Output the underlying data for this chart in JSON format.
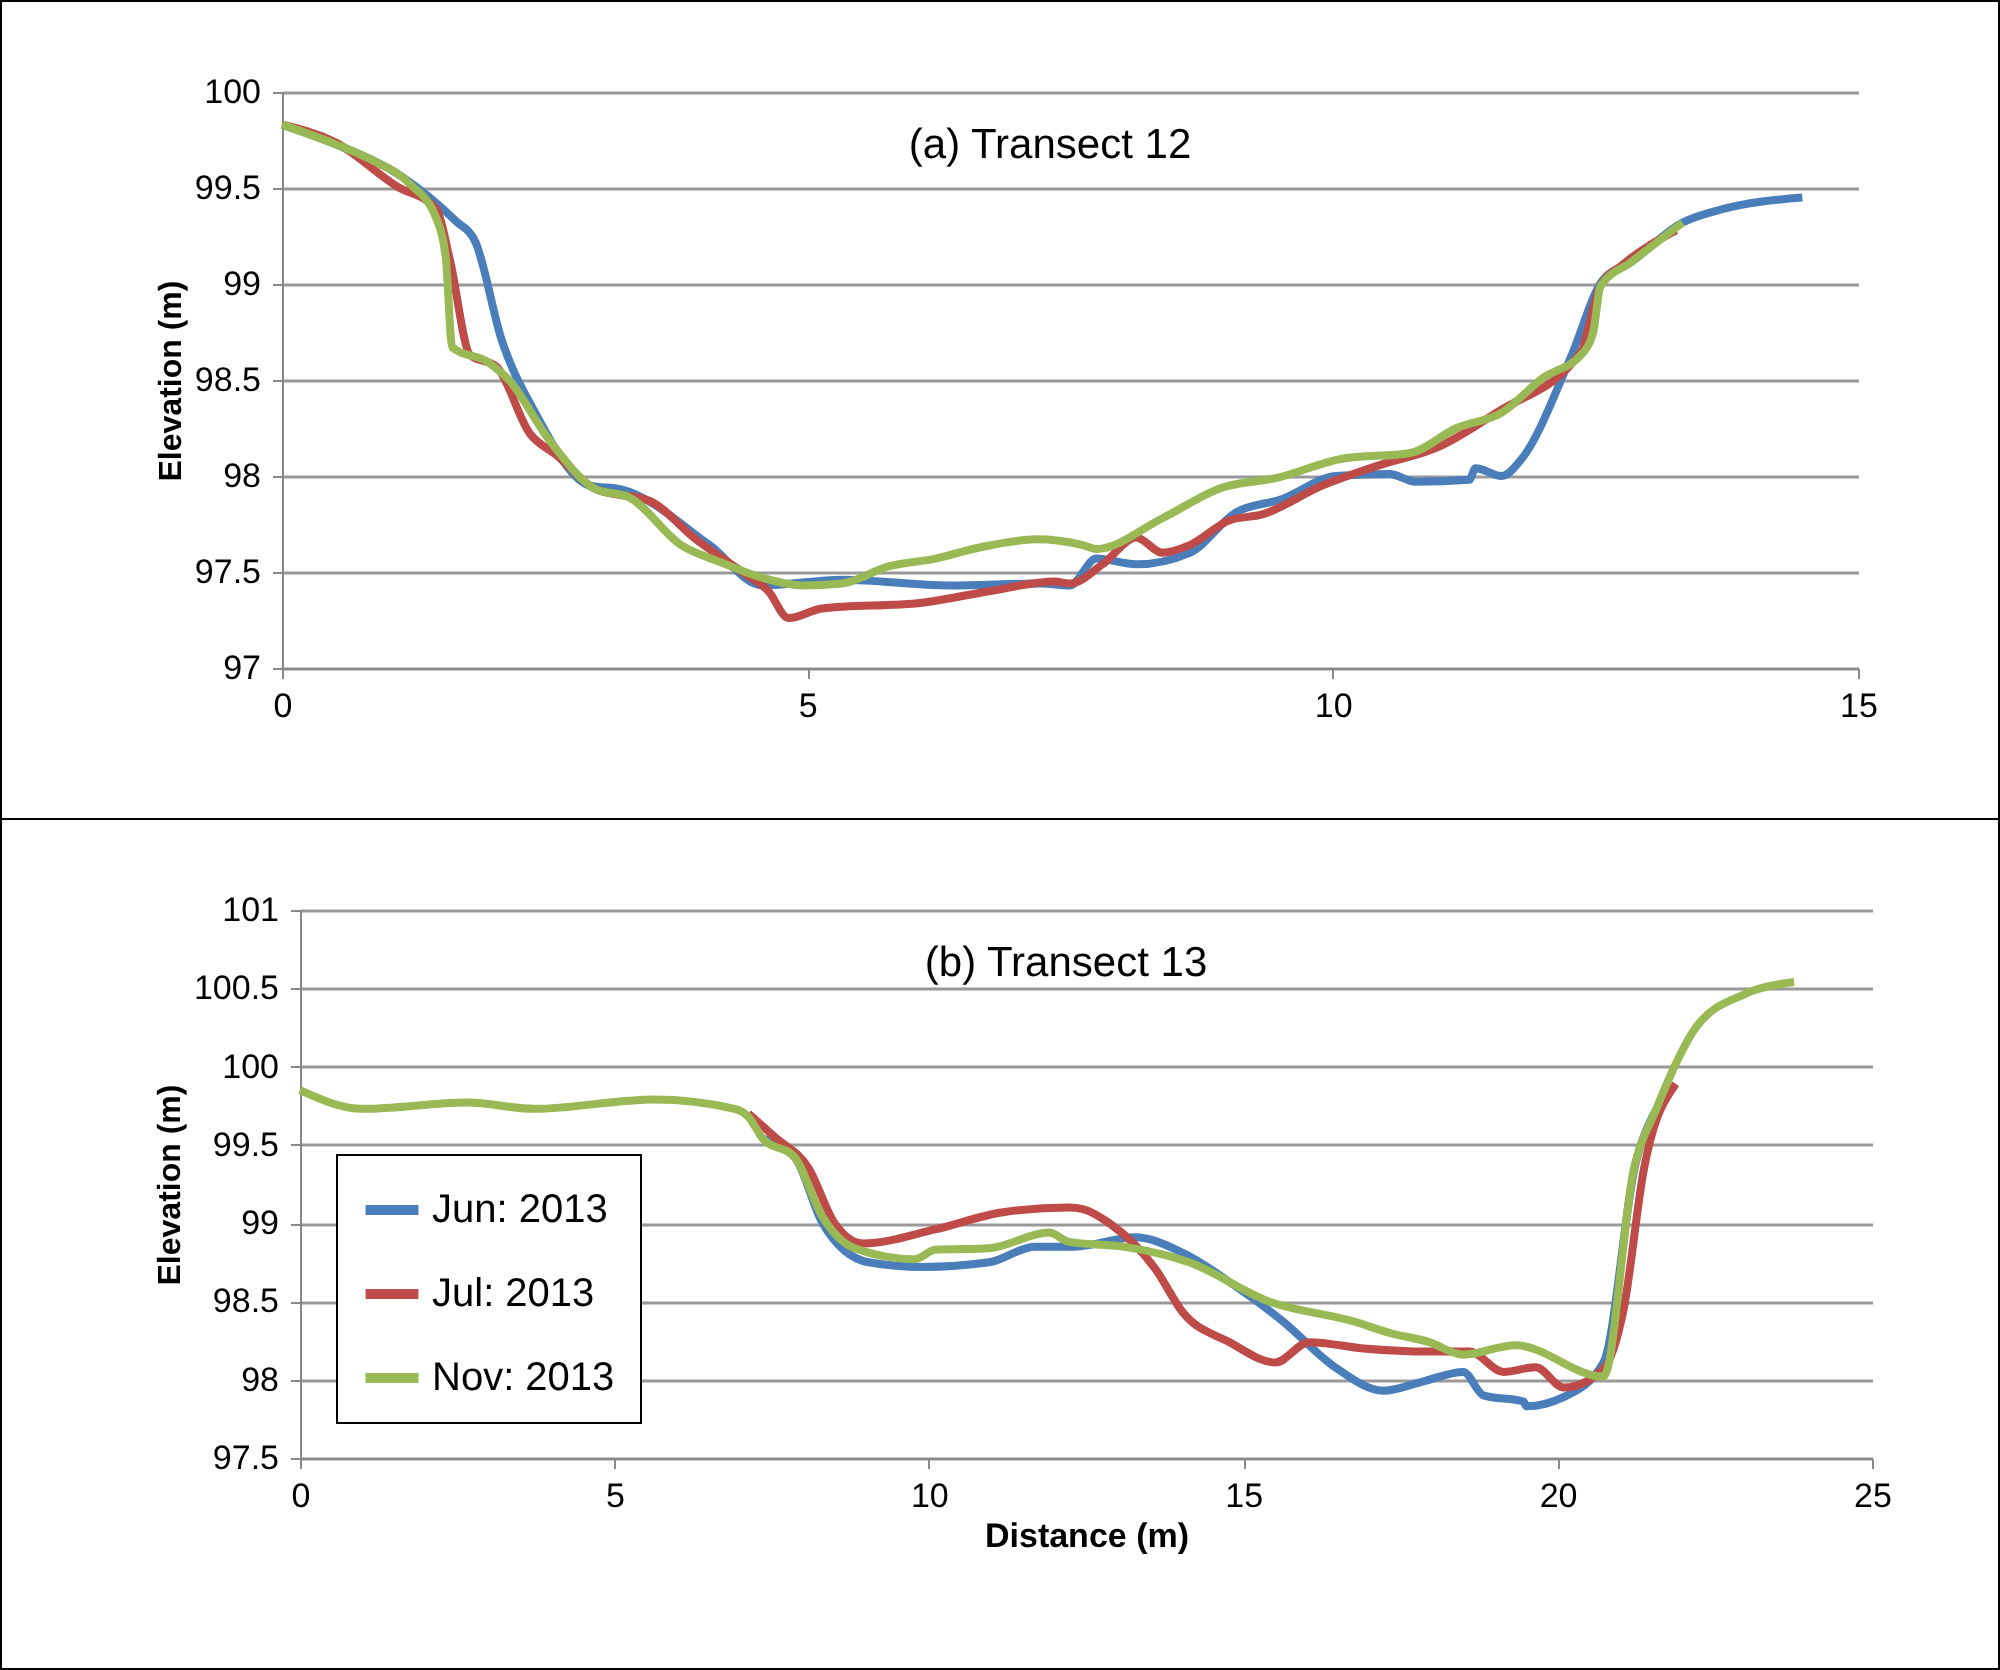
{
  "chart_data": [
    {
      "type": "line",
      "title": "(a) Transect 12",
      "ylabel": "Elevation (m)",
      "xlim": [
        0,
        15
      ],
      "xticks": [
        0,
        5,
        10,
        15
      ],
      "ylim": [
        97,
        100
      ],
      "yticks": [
        97,
        97.5,
        98,
        98.5,
        99,
        99.5,
        100
      ],
      "grid": "y",
      "legend": false,
      "series": [
        {
          "color": "#4a7ebb",
          "x": [
            0,
            0.5,
            1.14,
            1.65,
            1.84,
            2.09,
            2.41,
            2.93,
            3.23,
            4.07,
            4.57,
            5.33,
            6.35,
            7.23,
            7.5,
            7.75,
            8.13,
            8.64,
            9.08,
            9.52,
            10.03,
            10.54,
            10.79,
            11.3,
            11.36,
            11.61,
            11.8,
            12.26,
            12.57,
            12.83,
            13.33,
            13.71,
            14.47
          ],
          "values": [
            99.83,
            99.73,
            99.56,
            99.33,
            99.22,
            98.71,
            98.33,
            97.95,
            97.93,
            97.64,
            97.43,
            97.46,
            97.43,
            97.44,
            97.43,
            97.57,
            97.54,
            97.6,
            97.81,
            97.88,
            98.0,
            98.01,
            97.97,
            97.98,
            98.04,
            98.0,
            98.09,
            98.61,
            99.02,
            99.11,
            99.32,
            99.39,
            99.45
          ]
        },
        {
          "color": "#be4b48",
          "x": [
            0,
            0.5,
            1.09,
            1.47,
            1.6,
            1.79,
            2.04,
            2.36,
            2.61,
            2.99,
            3.5,
            3.94,
            4.38,
            4.63,
            4.82,
            5.14,
            6.09,
            6.73,
            7.36,
            7.5,
            7.81,
            8.13,
            8.38,
            8.64,
            9.02,
            9.33,
            9.9,
            10.41,
            11.04,
            11.56,
            12.38,
            12.4,
            12.55,
            12.76,
            13.27
          ],
          "values": [
            99.83,
            99.74,
            99.51,
            99.39,
            99.12,
            98.63,
            98.57,
            98.22,
            98.11,
            97.93,
            97.87,
            97.67,
            97.5,
            97.4,
            97.26,
            97.31,
            97.34,
            97.4,
            97.45,
            97.44,
            97.54,
            97.68,
            97.6,
            97.64,
            97.77,
            97.8,
            97.95,
            98.05,
            98.16,
            98.33,
            98.66,
            98.7,
            98.99,
            99.1,
            99.28
          ]
        },
        {
          "color": "#98b954",
          "x": [
            0,
            0.5,
            0.84,
            1.22,
            1.47,
            1.56,
            1.62,
            1.97,
            2.16,
            2.54,
            2.99,
            3.3,
            3.8,
            4.18,
            4.57,
            4.95,
            5.33,
            5.78,
            6.22,
            6.66,
            7.18,
            7.62,
            7.75,
            8.38,
            8.95,
            9.47,
            10.09,
            10.74,
            11.18,
            11.61,
            12.0,
            12.38,
            12.48,
            12.55,
            12.83,
            13.33
          ],
          "values": [
            99.83,
            99.73,
            99.65,
            99.52,
            99.34,
            99.13,
            98.67,
            98.59,
            98.5,
            98.19,
            97.93,
            97.89,
            97.64,
            97.55,
            97.47,
            97.43,
            97.44,
            97.53,
            97.57,
            97.63,
            97.67,
            97.64,
            97.62,
            97.78,
            97.94,
            97.99,
            98.09,
            98.12,
            98.25,
            98.33,
            98.51,
            98.64,
            98.75,
            98.99,
            99.11,
            99.32
          ]
        }
      ]
    },
    {
      "type": "line",
      "title": "(b) Transect 13",
      "xlabel": "Distance (m)",
      "ylabel": "Elevation (m)",
      "xlim": [
        0,
        25
      ],
      "xticks": [
        0,
        5,
        10,
        15,
        20,
        25
      ],
      "ylim": [
        97.5,
        101
      ],
      "yticks": [
        97.5,
        98,
        98.5,
        99,
        99.5,
        100,
        100.5,
        101
      ],
      "grid": "y",
      "legend": "bottom left",
      "series": [
        {
          "name": "Jun: 2013",
          "color": "#4a7ebb",
          "x": [
            7.36,
            7.87,
            8.31,
            9.04,
            9.9,
            10.96,
            11.69,
            12.32,
            13.28,
            14.04,
            14.87,
            15.64,
            16.46,
            17.23,
            17.87,
            18.5,
            18.82,
            19.46,
            19.5,
            20.1,
            20.73,
            21.24,
            21.56
          ],
          "values": [
            99.54,
            99.42,
            99.0,
            98.75,
            98.72,
            98.75,
            98.85,
            98.85,
            98.91,
            98.81,
            98.6,
            98.37,
            98.08,
            97.93,
            97.99,
            98.05,
            97.9,
            97.86,
            97.83,
            97.89,
            98.11,
            99.38,
            99.72
          ]
        },
        {
          "name": "Jul: 2013",
          "color": "#be4b48",
          "x": [
            7.13,
            7.55,
            8.09,
            8.5,
            8.95,
            10.1,
            11.18,
            12.23,
            12.45,
            12.87,
            13.6,
            14.04,
            14.78,
            15.51,
            16.05,
            16.91,
            17.96,
            18.6,
            19.14,
            19.65,
            20.1,
            20.73,
            21.05,
            21.37,
            21.88
          ],
          "values": [
            99.7,
            99.55,
            99.35,
            99.0,
            98.87,
            98.96,
            99.07,
            99.1,
            99.09,
            99.0,
            98.71,
            98.43,
            98.24,
            98.11,
            98.24,
            98.2,
            98.18,
            98.18,
            98.05,
            98.08,
            97.95,
            98.07,
            98.45,
            99.34,
            99.89
          ]
        },
        {
          "name": "Nov: 2013",
          "color": "#98b954",
          "x": [
            0,
            0.99,
            2.67,
            3.73,
            5.64,
            6.91,
            7.13,
            7.36,
            7.87,
            8.31,
            8.82,
            9.78,
            10.1,
            10.96,
            11.91,
            12.23,
            13.09,
            14.14,
            15.41,
            16.78,
            17.32,
            17.96,
            18.5,
            19.33,
            20.73,
            21.21,
            21.56,
            22.2,
            22.96,
            23.76
          ],
          "values": [
            99.85,
            99.73,
            99.77,
            99.73,
            99.79,
            99.73,
            99.68,
            99.54,
            99.42,
            99.04,
            98.84,
            98.77,
            98.83,
            98.84,
            98.94,
            98.88,
            98.85,
            98.75,
            98.5,
            98.37,
            98.3,
            98.24,
            98.16,
            98.22,
            98.02,
            99.34,
            99.72,
            100.25,
            100.46,
            100.54
          ]
        }
      ]
    }
  ]
}
